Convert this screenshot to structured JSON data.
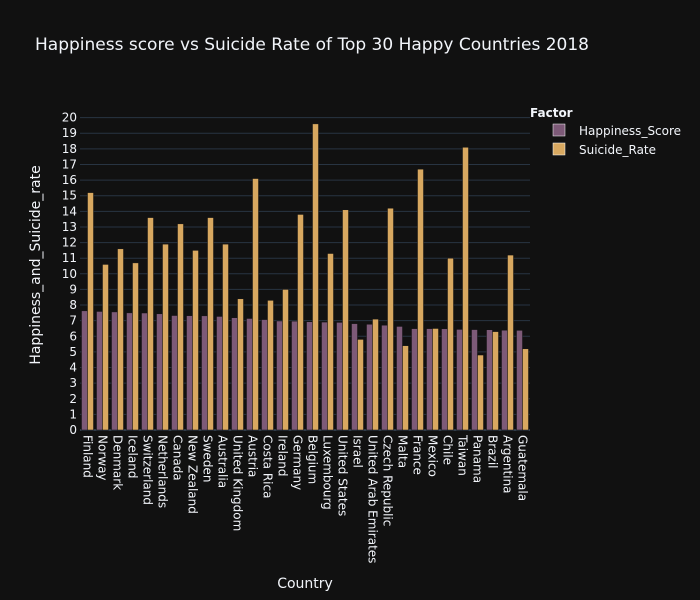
{
  "chart_data": {
    "type": "bar",
    "title": "Happiness score vs Suicide Rate of Top 30 Happy Countries 2018",
    "xlabel": "Country",
    "ylabel": "Happiness_and_Suicide_rate",
    "ylim": [
      0,
      21
    ],
    "yticks": [
      0,
      1,
      2,
      3,
      4,
      5,
      6,
      7,
      8,
      9,
      10,
      11,
      12,
      13,
      14,
      15,
      16,
      17,
      18,
      19,
      20
    ],
    "grid": true,
    "legend_title": "Factor",
    "legend_position": "top-right",
    "categories": [
      "Finland",
      "Norway",
      "Denmark",
      "Iceland",
      "Switzerland",
      "Netherlands",
      "Canada",
      "New Zealand",
      "Sweden",
      "Australia",
      "United Kingdom",
      "Austria",
      "Costa Rica",
      "Ireland",
      "Germany",
      "Belgium",
      "Luxembourg",
      "United States",
      "Israel",
      "United Arab Emirates",
      "Czech Republic",
      "Malta",
      "France",
      "Mexico",
      "Chile",
      "Taiwan",
      "Panama",
      "Brazil",
      "Argentina",
      "Guatemala"
    ],
    "series": [
      {
        "name": "Happiness_Score",
        "color": "#7d5a78",
        "values": [
          7.63,
          7.59,
          7.56,
          7.5,
          7.49,
          7.44,
          7.33,
          7.32,
          7.31,
          7.27,
          7.19,
          7.14,
          7.07,
          6.98,
          6.97,
          6.93,
          6.91,
          6.89,
          6.81,
          6.77,
          6.71,
          6.63,
          6.49,
          6.49,
          6.48,
          6.44,
          6.43,
          6.42,
          6.39,
          6.38
        ]
      },
      {
        "name": "Suicide_Rate",
        "color": "#d8a860",
        "values": [
          15.2,
          10.6,
          11.6,
          10.7,
          13.6,
          11.9,
          13.2,
          11.5,
          13.6,
          11.9,
          8.4,
          16.1,
          8.3,
          9.0,
          13.8,
          19.6,
          11.3,
          14.1,
          5.8,
          7.1,
          14.2,
          5.4,
          16.7,
          6.5,
          11.0,
          18.1,
          4.8,
          6.3,
          11.2,
          5.2
        ]
      }
    ]
  },
  "colors": {
    "background": "#111111",
    "grid": "#283442",
    "text": "#f2f5fa"
  }
}
